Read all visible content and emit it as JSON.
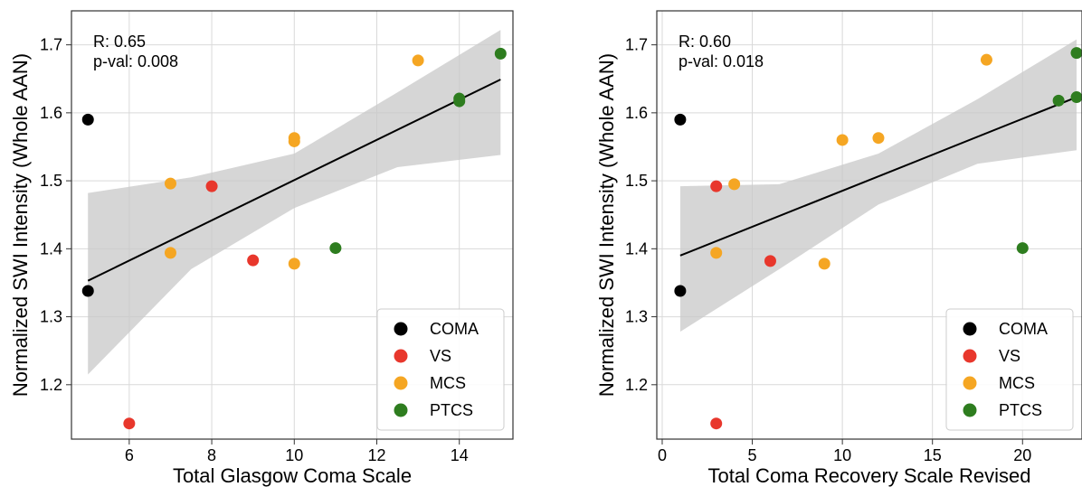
{
  "chart_data": [
    {
      "type": "scatter",
      "xlabel": "Total Glasgow Coma Scale",
      "ylabel": "Normalized SWI Intensity (Whole AAN)",
      "xlim": [
        4.6,
        15.3
      ],
      "ylim": [
        1.12,
        1.75
      ],
      "xticks": [
        6,
        8,
        10,
        12,
        14
      ],
      "yticks": [
        1.2,
        1.3,
        1.4,
        1.5,
        1.6,
        1.7
      ],
      "grid": true,
      "legend_placement": "lower-right",
      "annotations": [
        "R: 0.65",
        "p-val: 0.008"
      ],
      "regression": {
        "x": [
          5,
          15
        ],
        "y": [
          1.353,
          1.649
        ]
      },
      "confidence_band": {
        "x": [
          5,
          7.5,
          10,
          12.5,
          15
        ],
        "lower": [
          1.215,
          1.37,
          1.46,
          1.52,
          1.538
        ],
        "upper": [
          1.482,
          1.505,
          1.54,
          1.63,
          1.722
        ]
      },
      "series": [
        {
          "name": "COMA",
          "color": "#000000",
          "points": [
            [
              5,
              1.59
            ],
            [
              5,
              1.338
            ]
          ]
        },
        {
          "name": "VS",
          "color": "#e8372c",
          "points": [
            [
              8,
              1.492
            ],
            [
              9,
              1.383
            ],
            [
              6,
              1.143
            ]
          ]
        },
        {
          "name": "MCS",
          "color": "#f5a623",
          "points": [
            [
              7,
              1.496
            ],
            [
              7,
              1.394
            ],
            [
              10,
              1.563
            ],
            [
              10,
              1.558
            ],
            [
              10,
              1.378
            ],
            [
              13,
              1.677
            ]
          ]
        },
        {
          "name": "PTCS",
          "color": "#2e7d1f",
          "points": [
            [
              11,
              1.401
            ],
            [
              14,
              1.621
            ],
            [
              14,
              1.617
            ],
            [
              15,
              1.687
            ]
          ]
        }
      ]
    },
    {
      "type": "scatter",
      "xlabel": "Total Coma Recovery Scale Revised",
      "ylabel": "Normalized SWI Intensity (Whole AAN)",
      "xlim": [
        -0.3,
        23.3
      ],
      "ylim": [
        1.12,
        1.75
      ],
      "xticks": [
        0,
        5,
        10,
        15,
        20
      ],
      "yticks": [
        1.2,
        1.3,
        1.4,
        1.5,
        1.6,
        1.7
      ],
      "grid": true,
      "legend_placement": "lower-right",
      "annotations": [
        "R: 0.60",
        "p-val: 0.018"
      ],
      "regression": {
        "x": [
          1,
          23
        ],
        "y": [
          1.39,
          1.623
        ]
      },
      "confidence_band": {
        "x": [
          1,
          6.5,
          12,
          17.5,
          23
        ],
        "lower": [
          1.278,
          1.37,
          1.465,
          1.525,
          1.545
        ],
        "upper": [
          1.492,
          1.495,
          1.54,
          1.62,
          1.708
        ]
      },
      "series": [
        {
          "name": "COMA",
          "color": "#000000",
          "points": [
            [
              1,
              1.59
            ],
            [
              1,
              1.338
            ]
          ]
        },
        {
          "name": "VS",
          "color": "#e8372c",
          "points": [
            [
              3,
              1.492
            ],
            [
              6,
              1.382
            ],
            [
              3,
              1.143
            ]
          ]
        },
        {
          "name": "MCS",
          "color": "#f5a623",
          "points": [
            [
              4,
              1.495
            ],
            [
              3,
              1.394
            ],
            [
              9,
              1.378
            ],
            [
              10,
              1.56
            ],
            [
              12,
              1.563
            ],
            [
              18,
              1.678
            ]
          ]
        },
        {
          "name": "PTCS",
          "color": "#2e7d1f",
          "points": [
            [
              20,
              1.401
            ],
            [
              22,
              1.618
            ],
            [
              23,
              1.623
            ],
            [
              23,
              1.688
            ]
          ]
        }
      ]
    }
  ]
}
